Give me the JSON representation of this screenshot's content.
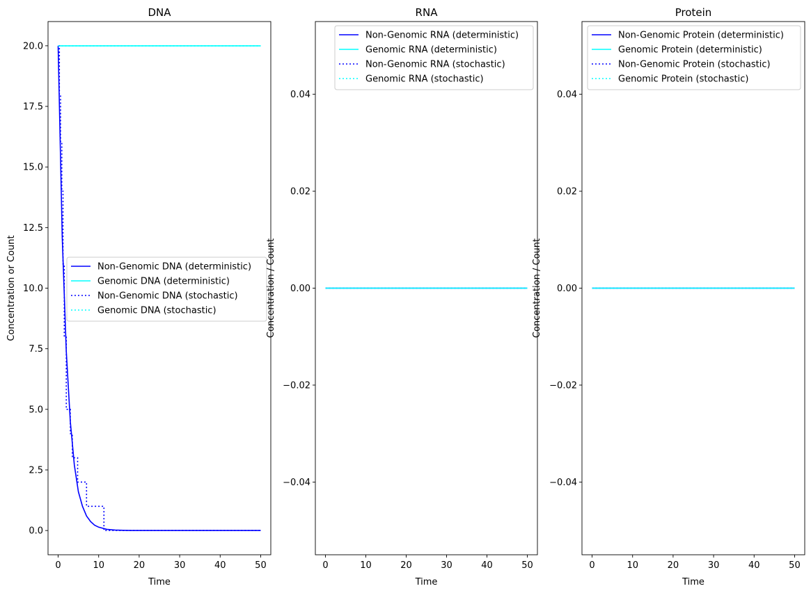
{
  "chart_data": [
    {
      "type": "line",
      "title": "DNA",
      "xlabel": "Time",
      "ylabel": "Concentration or Count",
      "xlim": [
        -2.5,
        52.5
      ],
      "ylim": [
        -1,
        21
      ],
      "xticks": [
        "0",
        "10",
        "20",
        "30",
        "40",
        "50"
      ],
      "yticks": [
        "0.0",
        "2.5",
        "5.0",
        "7.5",
        "10.0",
        "12.5",
        "15.0",
        "17.5",
        "20.0"
      ],
      "legend_position": "center-right",
      "series": [
        {
          "name": "Non-Genomic DNA (deterministic)",
          "color": "#0000ff",
          "style": "solid",
          "x": [
            0,
            1,
            2,
            3,
            4,
            5,
            6,
            7,
            8,
            9,
            10,
            12,
            14,
            16,
            18,
            20,
            25,
            30,
            40,
            50
          ],
          "y": [
            20,
            12.1,
            7.4,
            4.5,
            2.7,
            1.6,
            1.0,
            0.6,
            0.37,
            0.22,
            0.14,
            0.05,
            0.02,
            0.01,
            0,
            0,
            0,
            0,
            0,
            0
          ]
        },
        {
          "name": "Genomic DNA (deterministic)",
          "color": "#00ffff",
          "style": "solid",
          "x": [
            0,
            50
          ],
          "y": [
            20,
            20
          ]
        },
        {
          "name": "Non-Genomic DNA (stochastic)",
          "color": "#0000ff",
          "style": "dotted",
          "step": true,
          "x": [
            0,
            0.3,
            0.6,
            0.9,
            1.2,
            1.5,
            2.0,
            3.0,
            3.5,
            4.8,
            7.0,
            11.3,
            50
          ],
          "y": [
            20,
            18,
            16,
            14,
            11,
            8,
            5,
            4,
            3,
            2,
            1,
            0,
            0
          ]
        },
        {
          "name": "Genomic DNA (stochastic)",
          "color": "#00ffff",
          "style": "dotted",
          "x": [
            0,
            50
          ],
          "y": [
            20,
            20
          ]
        }
      ]
    },
    {
      "type": "line",
      "title": "RNA",
      "xlabel": "Time",
      "ylabel": "Concentration / Count",
      "xlim": [
        -2.5,
        52.5
      ],
      "ylim": [
        -0.055,
        0.055
      ],
      "xticks": [
        "0",
        "10",
        "20",
        "30",
        "40",
        "50"
      ],
      "yticks": [
        "−0.04",
        "−0.02",
        "0.00",
        "0.02",
        "0.04"
      ],
      "legend_position": "top-right",
      "series": [
        {
          "name": "Non-Genomic RNA (deterministic)",
          "color": "#0000ff",
          "style": "solid",
          "x": [
            0,
            50
          ],
          "y": [
            0,
            0
          ]
        },
        {
          "name": "Genomic RNA (deterministic)",
          "color": "#00ffff",
          "style": "solid",
          "x": [
            0,
            50
          ],
          "y": [
            0,
            0
          ]
        },
        {
          "name": "Non-Genomic RNA (stochastic)",
          "color": "#0000ff",
          "style": "dotted",
          "x": [
            0,
            50
          ],
          "y": [
            0,
            0
          ]
        },
        {
          "name": "Genomic RNA (stochastic)",
          "color": "#00ffff",
          "style": "dotted",
          "x": [
            0,
            50
          ],
          "y": [
            0,
            0
          ]
        }
      ]
    },
    {
      "type": "line",
      "title": "Protein",
      "xlabel": "Time",
      "ylabel": "Concentration / Count",
      "xlim": [
        -2.5,
        52.5
      ],
      "ylim": [
        -0.055,
        0.055
      ],
      "xticks": [
        "0",
        "10",
        "20",
        "30",
        "40",
        "50"
      ],
      "yticks": [
        "−0.04",
        "−0.02",
        "0.00",
        "0.02",
        "0.04"
      ],
      "legend_position": "top-right",
      "series": [
        {
          "name": "Non-Genomic Protein (deterministic)",
          "color": "#0000ff",
          "style": "solid",
          "x": [
            0,
            50
          ],
          "y": [
            0,
            0
          ]
        },
        {
          "name": "Genomic Protein (deterministic)",
          "color": "#00ffff",
          "style": "solid",
          "x": [
            0,
            50
          ],
          "y": [
            0,
            0
          ]
        },
        {
          "name": "Non-Genomic Protein (stochastic)",
          "color": "#0000ff",
          "style": "dotted",
          "x": [
            0,
            50
          ],
          "y": [
            0,
            0
          ]
        },
        {
          "name": "Genomic Protein (stochastic)",
          "color": "#00ffff",
          "style": "dotted",
          "x": [
            0,
            50
          ],
          "y": [
            0,
            0
          ]
        }
      ]
    }
  ]
}
